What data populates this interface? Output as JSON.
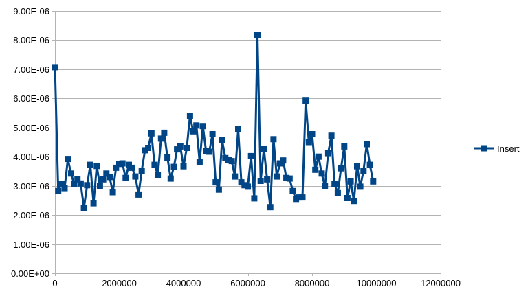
{
  "chart_data": {
    "type": "line",
    "title": "",
    "xlabel": "",
    "ylabel": "",
    "xlim": [
      0,
      12000000
    ],
    "ylim": [
      0,
      9e-06
    ],
    "x_ticks": [
      0,
      2000000,
      4000000,
      6000000,
      8000000,
      10000000,
      12000000
    ],
    "x_tick_labels": [
      "0",
      "2000000",
      "4000000",
      "6000000",
      "8000000",
      "10000000",
      "12000000"
    ],
    "y_ticks": [
      0,
      1e-06,
      2e-06,
      3e-06,
      4e-06,
      5e-06,
      6e-06,
      7e-06,
      8e-06,
      9e-06
    ],
    "y_tick_labels": [
      "0.00E+00",
      "1.00E-06",
      "2.00E-06",
      "3.00E-06",
      "4.00E-06",
      "5.00E-06",
      "6.00E-06",
      "7.00E-06",
      "8.00E-06",
      "9.00E-06"
    ],
    "grid": "horizontal",
    "legend_position": "right",
    "series": [
      {
        "name": "Insert",
        "color": "#004586",
        "marker": "square",
        "x": [
          0,
          100000,
          200000,
          300000,
          400000,
          500000,
          600000,
          700000,
          800000,
          900000,
          1000000,
          1100000,
          1200000,
          1300000,
          1400000,
          1500000,
          1600000,
          1700000,
          1800000,
          1900000,
          2000000,
          2100000,
          2200000,
          2300000,
          2400000,
          2500000,
          2600000,
          2700000,
          2800000,
          2900000,
          3000000,
          3100000,
          3200000,
          3300000,
          3400000,
          3500000,
          3600000,
          3700000,
          3800000,
          3900000,
          4000000,
          4100000,
          4200000,
          4300000,
          4400000,
          4500000,
          4600000,
          4700000,
          4800000,
          4900000,
          5000000,
          5100000,
          5200000,
          5300000,
          5400000,
          5500000,
          5600000,
          5700000,
          5800000,
          5900000,
          6000000,
          6100000,
          6200000,
          6300000,
          6400000,
          6500000,
          6600000,
          6700000,
          6800000,
          6900000,
          7000000,
          7100000,
          7200000,
          7300000,
          7400000,
          7500000,
          7600000,
          7700000,
          7800000,
          7900000,
          8000000,
          8100000,
          8200000,
          8300000,
          8400000,
          8500000,
          8600000,
          8700000,
          8800000,
          8900000,
          9000000,
          9100000,
          9200000,
          9300000,
          9400000,
          9500000,
          9600000,
          9700000,
          9800000,
          9900000
        ],
        "values": [
          7.07e-06,
          2.82e-06,
          3.07e-06,
          2.92e-06,
          3.92e-06,
          3.42e-06,
          3.05e-06,
          3.22e-06,
          3.08e-06,
          2.25e-06,
          3.02e-06,
          3.72e-06,
          2.4e-06,
          3.68e-06,
          3e-06,
          3.22e-06,
          3.42e-06,
          3.3e-06,
          2.78e-06,
          3.62e-06,
          3.75e-06,
          3.77e-06,
          3.27e-06,
          3.72e-06,
          3.62e-06,
          3.32e-06,
          2.7e-06,
          3.52e-06,
          4.22e-06,
          4.3e-06,
          4.8e-06,
          3.72e-06,
          3.37e-06,
          4.62e-06,
          4.82e-06,
          3.97e-06,
          3.25e-06,
          3.65e-06,
          4.25e-06,
          4.35e-06,
          3.67e-06,
          4.3e-06,
          5.4e-06,
          4.87e-06,
          5.07e-06,
          3.82e-06,
          5.05e-06,
          4.2e-06,
          4.17e-06,
          4.77e-06,
          3.12e-06,
          2.87e-06,
          4.57e-06,
          3.95e-06,
          3.9e-06,
          3.85e-06,
          3.32e-06,
          4.95e-06,
          3.12e-06,
          3.02e-06,
          2.97e-06,
          4.02e-06,
          2.57e-06,
          8.17e-06,
          3.17e-06,
          4.27e-06,
          3.22e-06,
          2.27e-06,
          4.6e-06,
          3.32e-06,
          3.77e-06,
          3.87e-06,
          3.27e-06,
          3.25e-06,
          2.82e-06,
          2.55e-06,
          2.6e-06,
          2.6e-06,
          5.92e-06,
          4.5e-06,
          4.77e-06,
          3.55e-06,
          4e-06,
          3.42e-06,
          2.98e-06,
          4.12e-06,
          4.72e-06,
          3.05e-06,
          2.75e-06,
          3.6e-06,
          4.35e-06,
          2.58e-06,
          3.15e-06,
          2.48e-06,
          3.67e-06,
          2.97e-06,
          3.52e-06,
          4.43e-06,
          3.72e-06,
          3.15e-06
        ]
      }
    ]
  }
}
